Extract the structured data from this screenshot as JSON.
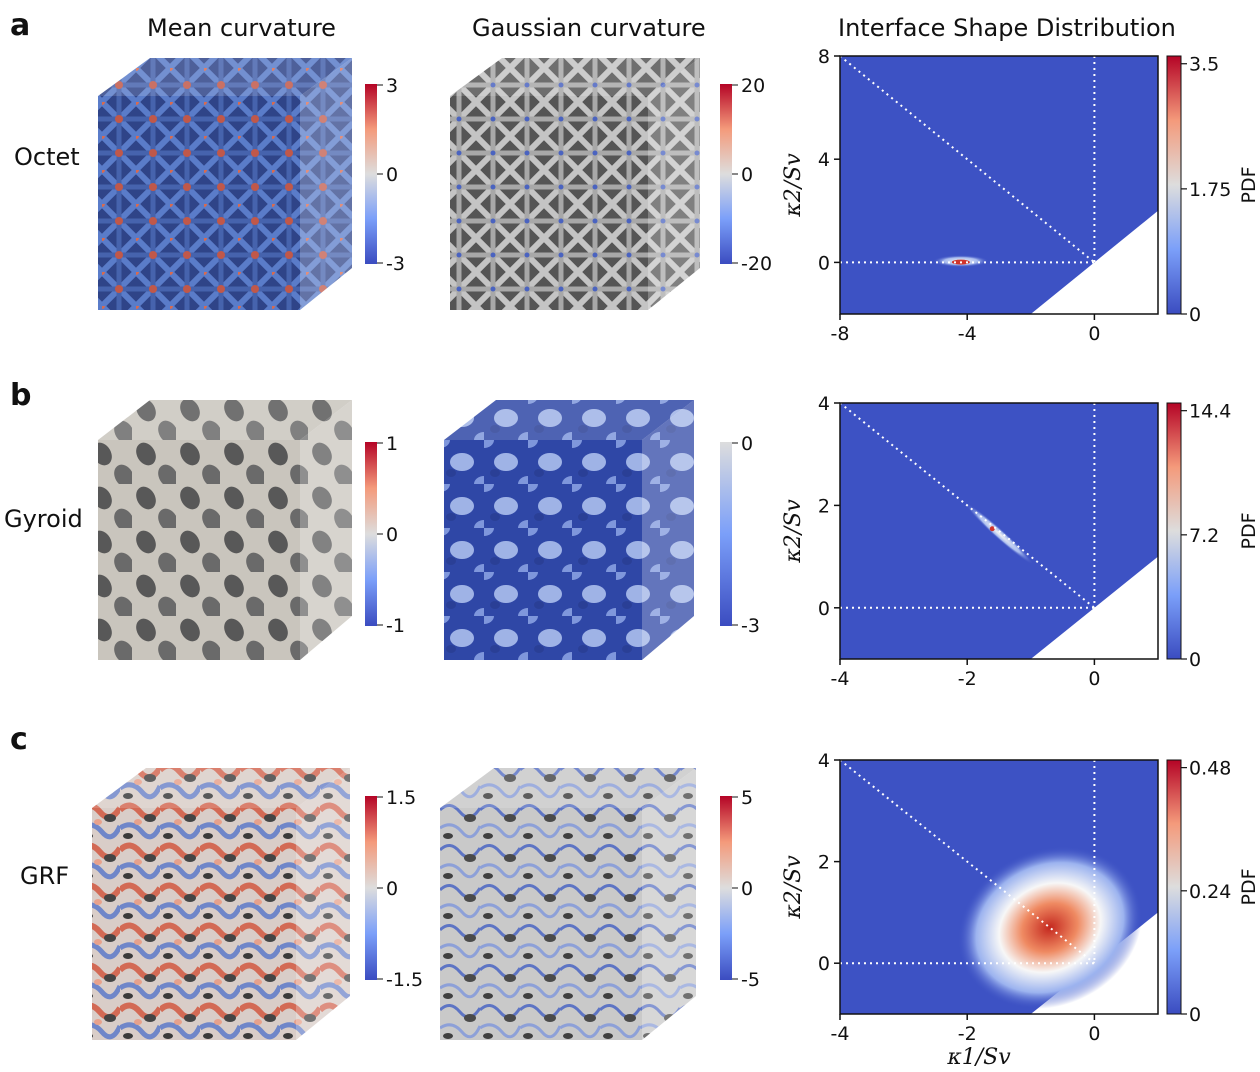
{
  "column_titles": [
    "Mean curvature",
    "Gaussian curvature",
    "Interface Shape Distribution"
  ],
  "rows": [
    {
      "letter": "a",
      "label": "Octet",
      "mean_cbar": [
        "3",
        "0",
        "-3"
      ],
      "gauss_cbar": [
        "20",
        "0",
        "-20"
      ],
      "pdf_cbar": [
        "3.5",
        "1.75",
        "0"
      ]
    },
    {
      "letter": "b",
      "label": "Gyroid",
      "mean_cbar": [
        "1",
        "0",
        "-1"
      ],
      "gauss_cbar": [
        "0",
        "-3"
      ],
      "pdf_cbar": [
        "14.4",
        "7.2",
        "0"
      ]
    },
    {
      "letter": "c",
      "label": "GRF",
      "mean_cbar": [
        "1.5",
        "0",
        "-1.5"
      ],
      "gauss_cbar": [
        "5",
        "0",
        "-5"
      ],
      "pdf_cbar": [
        "0.48",
        "0.24",
        "0"
      ]
    }
  ],
  "colors": {
    "diverging_low": "#3b4cc0",
    "diverging_mid": "#dddddd",
    "diverging_high": "#b40426",
    "lattice_blue": "#4a6ab8",
    "lattice_gray": "#b8b8b8",
    "plot_background": "#3d52c4"
  },
  "cbar_label": "PDF",
  "chart_data": [
    {
      "type": "heatmap",
      "title": "",
      "xlabel": "",
      "ylabel": "κ2/Sv",
      "xlim": [
        -8,
        2
      ],
      "ylim": [
        -2,
        8
      ],
      "xticks": [
        "-8",
        "-4",
        "0"
      ],
      "yticks": [
        "0",
        "4",
        "8"
      ],
      "reference_lines": [
        "κ2 = 0",
        "κ1 = 0",
        "κ1 = -κ2"
      ],
      "peak": {
        "x": -4.2,
        "y": 0.05,
        "max_pdf": 3.5
      }
    },
    {
      "type": "heatmap",
      "title": "",
      "xlabel": "",
      "ylabel": "κ2/Sv",
      "xlim": [
        -4,
        1
      ],
      "ylim": [
        -1,
        4
      ],
      "xticks": [
        "-4",
        "-2",
        "0"
      ],
      "yticks": [
        "0",
        "2",
        "4"
      ],
      "reference_lines": [
        "κ2 = 0",
        "κ1 = 0",
        "κ1 = -κ2"
      ],
      "peak": {
        "x": -1.7,
        "y": 1.7,
        "max_pdf": 14.4
      }
    },
    {
      "type": "heatmap",
      "title": "",
      "xlabel": "κ1/Sv",
      "ylabel": "κ2/Sv",
      "xlim": [
        -4,
        1
      ],
      "ylim": [
        -1,
        4
      ],
      "xticks": [
        "-4",
        "-2",
        "0"
      ],
      "yticks": [
        "0",
        "2",
        "4"
      ],
      "reference_lines": [
        "κ2 = 0",
        "κ1 = 0",
        "κ1 = -κ2"
      ],
      "peak": {
        "x": -0.7,
        "y": 0.7,
        "max_pdf": 0.48
      }
    }
  ]
}
